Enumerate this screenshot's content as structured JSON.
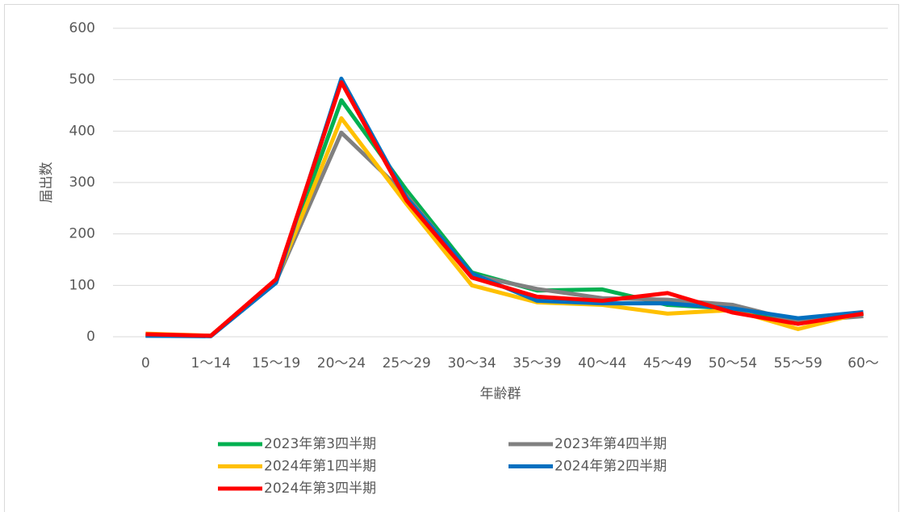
{
  "chart_data": {
    "type": "line",
    "xlabel": "年齢群",
    "ylabel": "届出数",
    "categories": [
      "0",
      "1〜14",
      "15〜19",
      "20〜24",
      "25〜29",
      "30〜34",
      "35〜39",
      "40〜44",
      "45〜49",
      "50〜54",
      "55〜59",
      "60〜"
    ],
    "series": [
      {
        "name": "2023年第3四半期",
        "color": "#00b050",
        "values": [
          3,
          2,
          110,
          460,
          285,
          125,
          90,
          92,
          62,
          55,
          30,
          45
        ]
      },
      {
        "name": "2023年第4四半期",
        "color": "#808080",
        "values": [
          2,
          2,
          108,
          397,
          275,
          120,
          93,
          75,
          72,
          62,
          30,
          40
        ]
      },
      {
        "name": "2024年第1四半期",
        "color": "#ffc000",
        "values": [
          6,
          2,
          110,
          425,
          258,
          100,
          67,
          62,
          45,
          52,
          15,
          47
        ]
      },
      {
        "name": "2024年第2四半期",
        "color": "#0070c0",
        "values": [
          2,
          1,
          105,
          502,
          270,
          123,
          70,
          65,
          65,
          55,
          36,
          48
        ]
      },
      {
        "name": "2024年第3四半期",
        "color": "#ff0000",
        "values": [
          5,
          2,
          112,
          495,
          265,
          115,
          78,
          70,
          85,
          47,
          25,
          45
        ]
      }
    ],
    "ylim": [
      0,
      600
    ],
    "yticks": [
      0,
      100,
      200,
      300,
      400,
      500,
      600
    ],
    "grid": true,
    "legend": "bottom"
  }
}
